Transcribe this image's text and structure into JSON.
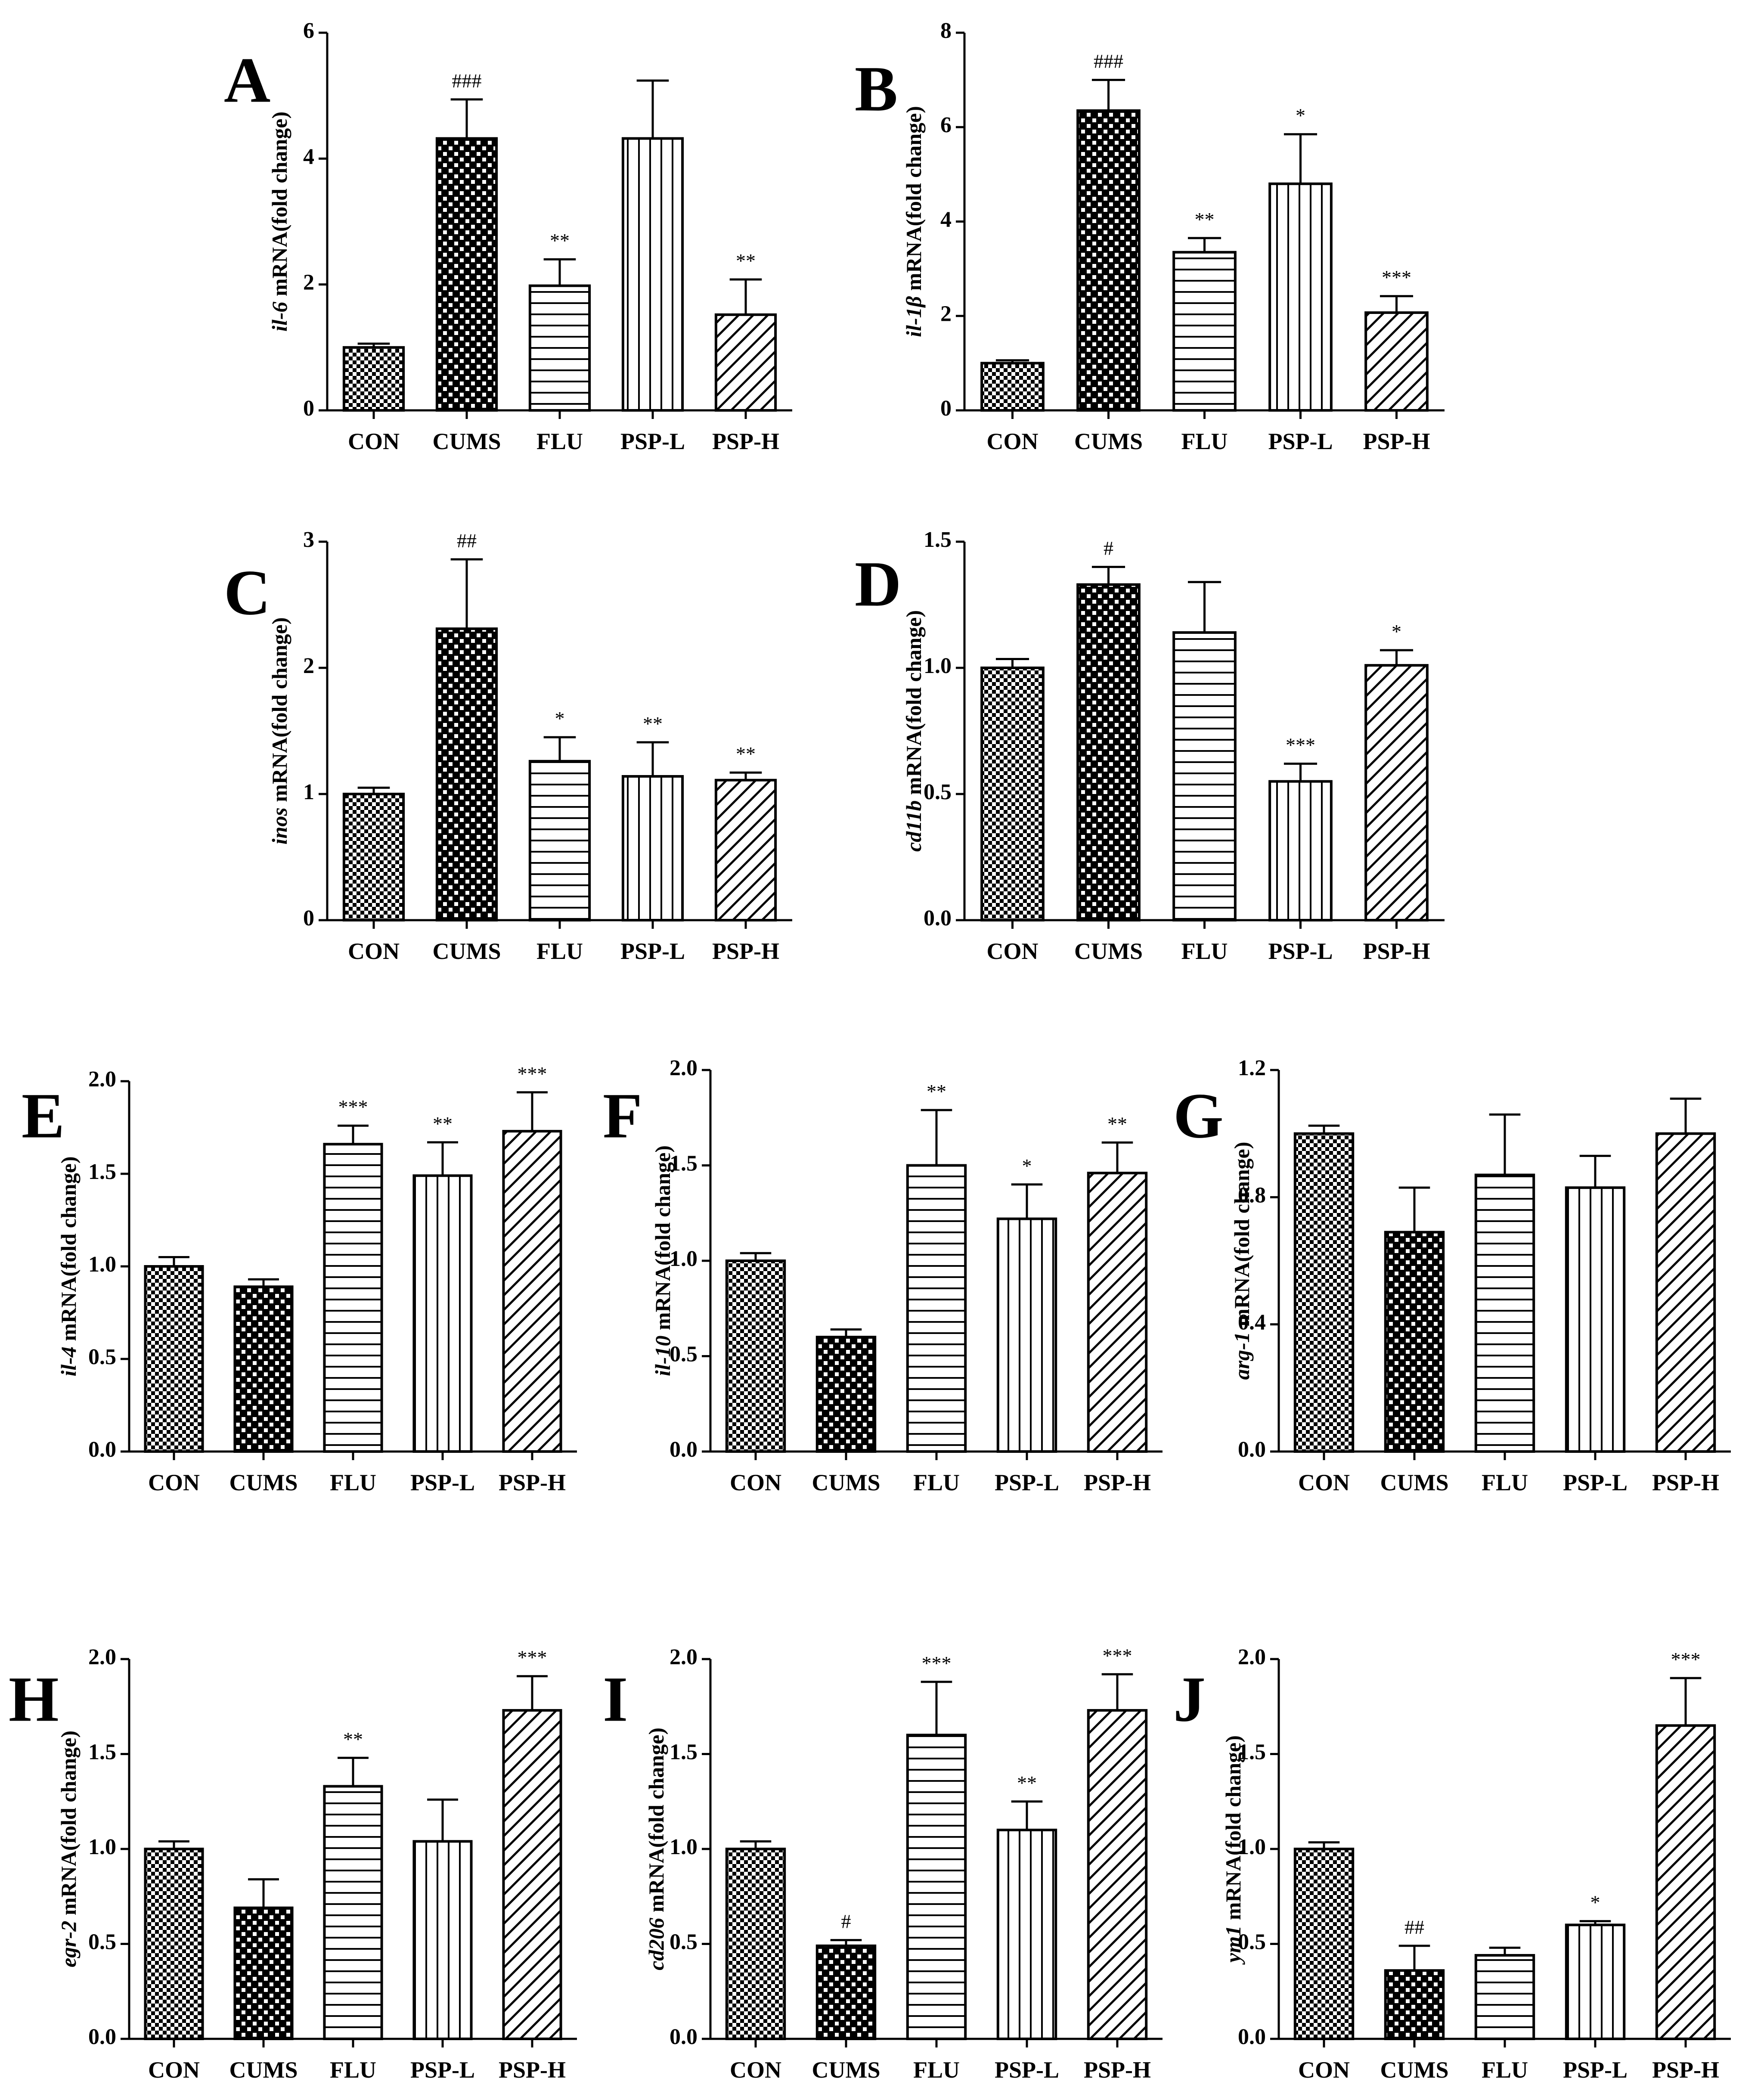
{
  "chart_data": [
    {
      "panel": "A",
      "type": "bar",
      "categories": [
        "CON",
        "CUMS",
        "FLU",
        "PSP-L",
        "PSP-H"
      ],
      "values": [
        1.0,
        4.32,
        1.98,
        4.32,
        1.52
      ],
      "errors": [
        0.06,
        0.62,
        0.42,
        0.92,
        0.56
      ],
      "significance": [
        "",
        "###",
        "**",
        "",
        "**"
      ],
      "ylabel_italic": "il-6",
      "ylabel_rest": " mRNA(fold change)",
      "ylim": [
        0,
        6
      ],
      "yticks": [
        "0",
        "2",
        "4",
        "6"
      ],
      "tick_values": [
        0,
        2,
        4,
        6
      ]
    },
    {
      "panel": "B",
      "type": "bar",
      "categories": [
        "CON",
        "CUMS",
        "FLU",
        "PSP-L",
        "PSP-H"
      ],
      "values": [
        1.0,
        6.35,
        3.35,
        4.8,
        2.07
      ],
      "errors": [
        0.06,
        0.65,
        0.3,
        1.05,
        0.35
      ],
      "significance": [
        "",
        "###",
        "**",
        "*",
        "***"
      ],
      "ylabel_italic": "il-1β",
      "ylabel_rest": " mRNA(fold change)",
      "ylim": [
        0,
        8
      ],
      "yticks": [
        "0",
        "2",
        "4",
        "6",
        "8"
      ],
      "tick_values": [
        0,
        2,
        4,
        6,
        8
      ]
    },
    {
      "panel": "C",
      "type": "bar",
      "categories": [
        "CON",
        "CUMS",
        "FLU",
        "PSP-L",
        "PSP-H"
      ],
      "values": [
        1.0,
        2.31,
        1.26,
        1.14,
        1.11
      ],
      "errors": [
        0.05,
        0.55,
        0.19,
        0.27,
        0.06
      ],
      "significance": [
        "",
        "##",
        "*",
        "**",
        "**"
      ],
      "ylabel_italic": "inos",
      "ylabel_rest": " mRNA(fold change)",
      "ylim": [
        0,
        3
      ],
      "yticks": [
        "0",
        "1",
        "2",
        "3"
      ],
      "tick_values": [
        0,
        1,
        2,
        3
      ]
    },
    {
      "panel": "D",
      "type": "bar",
      "categories": [
        "CON",
        "CUMS",
        "FLU",
        "PSP-L",
        "PSP-H"
      ],
      "values": [
        1.0,
        1.33,
        1.14,
        0.55,
        1.01
      ],
      "errors": [
        0.035,
        0.07,
        0.2,
        0.07,
        0.06
      ],
      "significance": [
        "",
        "#",
        "",
        "***",
        "*"
      ],
      "ylabel_italic": "cd11b",
      "ylabel_rest": " mRNA(fold change)",
      "ylim": [
        0,
        1.5
      ],
      "yticks": [
        "0.0",
        "0.5",
        "1.0",
        "1.5"
      ],
      "tick_values": [
        0,
        0.5,
        1.0,
        1.5
      ]
    },
    {
      "panel": "E",
      "type": "bar",
      "categories": [
        "CON",
        "CUMS",
        "FLU",
        "PSP-L",
        "PSP-H"
      ],
      "values": [
        1.0,
        0.89,
        1.66,
        1.49,
        1.73
      ],
      "errors": [
        0.05,
        0.04,
        0.1,
        0.18,
        0.21
      ],
      "significance": [
        "",
        "",
        "***",
        "**",
        "***"
      ],
      "ylabel_italic": "il-4",
      "ylabel_rest": " mRNA(fold change)",
      "ylim": [
        0,
        2
      ],
      "yticks": [
        "0.0",
        "0.5",
        "1.0",
        "1.5",
        "2.0"
      ],
      "tick_values": [
        0,
        0.5,
        1.0,
        1.5,
        2.0
      ]
    },
    {
      "panel": "F",
      "type": "bar",
      "categories": [
        "CON",
        "CUMS",
        "FLU",
        "PSP-L",
        "PSP-H"
      ],
      "values": [
        1.0,
        0.6,
        1.5,
        1.22,
        1.46
      ],
      "errors": [
        0.04,
        0.04,
        0.29,
        0.18,
        0.16
      ],
      "significance": [
        "",
        "",
        "**",
        "*",
        "**"
      ],
      "ylabel_italic": "il-10",
      "ylabel_rest": " mRNA(fold change)",
      "ylim": [
        0,
        2
      ],
      "yticks": [
        "0.0",
        "0.5",
        "1.0",
        "1.5",
        "2.0"
      ],
      "tick_values": [
        0,
        0.5,
        1.0,
        1.5,
        2.0
      ]
    },
    {
      "panel": "G",
      "type": "bar",
      "categories": [
        "CON",
        "CUMS",
        "FLU",
        "PSP-L",
        "PSP-H"
      ],
      "values": [
        1.0,
        0.69,
        0.87,
        0.83,
        1.0
      ],
      "errors": [
        0.025,
        0.14,
        0.19,
        0.1,
        0.11
      ],
      "significance": [
        "",
        "",
        "",
        "",
        ""
      ],
      "ylabel_italic": "arg-1",
      "ylabel_rest": " mRNA(fold change)",
      "ylim": [
        0,
        1.2
      ],
      "yticks": [
        "0.0",
        "0.4",
        "0.8",
        "1.2"
      ],
      "tick_values": [
        0,
        0.4,
        0.8,
        1.2
      ]
    },
    {
      "panel": "H",
      "type": "bar",
      "categories": [
        "CON",
        "CUMS",
        "FLU",
        "PSP-L",
        "PSP-H"
      ],
      "values": [
        1.0,
        0.69,
        1.33,
        1.04,
        1.73
      ],
      "errors": [
        0.04,
        0.15,
        0.15,
        0.22,
        0.18
      ],
      "significance": [
        "",
        "",
        "**",
        "",
        "***"
      ],
      "ylabel_italic": "egr-2",
      "ylabel_rest": " mRNA(fold change)",
      "ylim": [
        0,
        2
      ],
      "yticks": [
        "0.0",
        "0.5",
        "1.0",
        "1.5",
        "2.0"
      ],
      "tick_values": [
        0,
        0.5,
        1.0,
        1.5,
        2.0
      ]
    },
    {
      "panel": "I",
      "type": "bar",
      "categories": [
        "CON",
        "CUMS",
        "FLU",
        "PSP-L",
        "PSP-H"
      ],
      "values": [
        1.0,
        0.49,
        1.6,
        1.1,
        1.73
      ],
      "errors": [
        0.04,
        0.03,
        0.28,
        0.15,
        0.19
      ],
      "significance": [
        "",
        "#",
        "***",
        "**",
        "***"
      ],
      "ylabel_italic": "cd206",
      "ylabel_rest": " mRNA(fold change)",
      "ylim": [
        0,
        2
      ],
      "yticks": [
        "0.0",
        "0.5",
        "1.0",
        "1.5",
        "2.0"
      ],
      "tick_values": [
        0,
        0.5,
        1.0,
        1.5,
        2.0
      ]
    },
    {
      "panel": "J",
      "type": "bar",
      "categories": [
        "CON",
        "CUMS",
        "FLU",
        "PSP-L",
        "PSP-H"
      ],
      "values": [
        1.0,
        0.36,
        0.44,
        0.6,
        1.65
      ],
      "errors": [
        0.035,
        0.13,
        0.04,
        0.02,
        0.25
      ],
      "significance": [
        "",
        "##",
        "",
        "*",
        "***"
      ],
      "ylabel_italic": "ym1",
      "ylabel_rest": " mRNA(fold change)",
      "ylim": [
        0,
        2
      ],
      "yticks": [
        "0.0",
        "0.5",
        "1.0",
        "1.5",
        "2.0"
      ],
      "tick_values": [
        0,
        0.5,
        1.0,
        1.5,
        2.0
      ]
    }
  ],
  "bar_patterns": [
    "checker-small",
    "checker-large",
    "horizontal-lines",
    "vertical-lines",
    "diagonal-lines"
  ],
  "colors": {
    "ink": "#000000",
    "background": "#ffffff"
  }
}
